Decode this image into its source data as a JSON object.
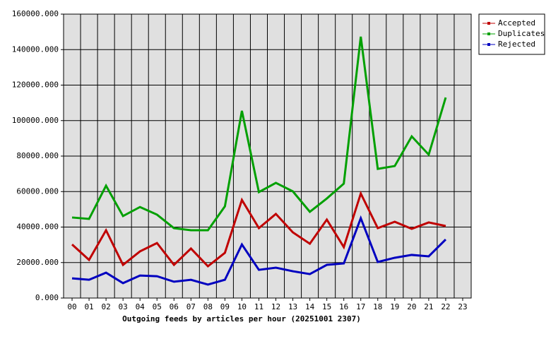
{
  "chart_data": {
    "type": "line",
    "title": "Outgoing feeds by articles per hour (20251001 2307)",
    "categories": [
      "00",
      "01",
      "02",
      "03",
      "04",
      "05",
      "06",
      "07",
      "08",
      "09",
      "10",
      "11",
      "12",
      "13",
      "14",
      "15",
      "16",
      "17",
      "18",
      "19",
      "20",
      "21",
      "22",
      "23"
    ],
    "series": [
      {
        "name": "Accepted",
        "color": "#c00000",
        "values": [
          30200,
          21500,
          38200,
          18700,
          26300,
          31000,
          18700,
          27900,
          17900,
          25500,
          55300,
          39400,
          47400,
          37000,
          30600,
          44200,
          28700,
          58900,
          39400,
          43000,
          39000,
          42600,
          40600,
          null
        ]
      },
      {
        "name": "Duplicates",
        "color": "#00a000",
        "values": [
          45400,
          44600,
          63300,
          46200,
          51300,
          47000,
          39400,
          38200,
          38200,
          51700,
          105500,
          59700,
          64900,
          60100,
          48600,
          56100,
          64500,
          147300,
          72800,
          74400,
          91100,
          80800,
          113000,
          null
        ]
      },
      {
        "name": "Rejected",
        "color": "#0000c0",
        "values": [
          11100,
          10300,
          14300,
          8400,
          12700,
          12300,
          9200,
          10300,
          7600,
          10300,
          30200,
          15900,
          17100,
          15100,
          13500,
          18700,
          19500,
          45000,
          20300,
          22700,
          24300,
          23500,
          33000,
          null
        ]
      }
    ],
    "ylim": [
      0,
      160000
    ],
    "yticks": [
      {
        "value": 0,
        "label": "0.000"
      },
      {
        "value": 20000,
        "label": "20000.000"
      },
      {
        "value": 40000,
        "label": "40000.000"
      },
      {
        "value": 60000,
        "label": "60000.000"
      },
      {
        "value": 80000,
        "label": "80000.000"
      },
      {
        "value": 100000,
        "label": "100000.000"
      },
      {
        "value": 120000,
        "label": "120000.000"
      },
      {
        "value": 140000,
        "label": "140000.000"
      },
      {
        "value": 160000,
        "label": "160000.000"
      }
    ],
    "grid": true,
    "legend": "top-right"
  }
}
